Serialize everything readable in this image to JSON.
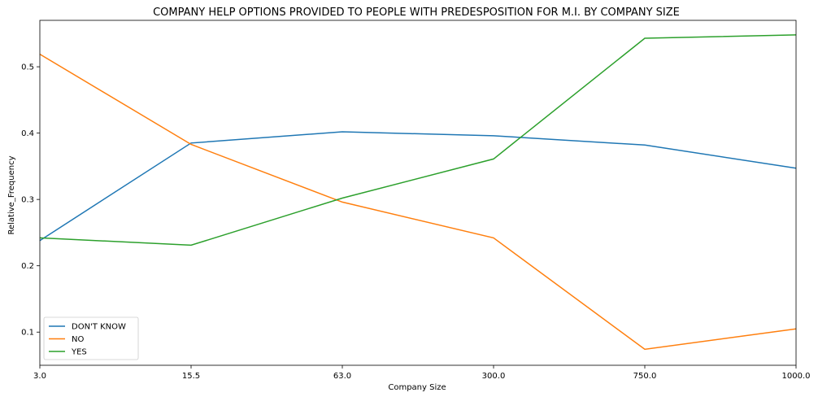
{
  "chart_data": {
    "type": "line",
    "title": "COMPANY HELP OPTIONS PROVIDED TO PEOPLE WITH PREDESPOSITION FOR M.I. BY COMPANY SIZE",
    "xlabel": "Company Size",
    "ylabel": "Relative_Frequency",
    "categories": [
      "3.0",
      "15.5",
      "63.0",
      "300.0",
      "750.0",
      "1000.0"
    ],
    "y_ticks": [
      "0.1",
      "0.2",
      "0.3",
      "0.4",
      "0.5"
    ],
    "ylim": [
      0.05,
      0.57
    ],
    "grid": false,
    "legend_position": "bottom-left",
    "series": [
      {
        "name": "DON'T KNOW",
        "color": "#1f77b4",
        "values": [
          0.238,
          0.385,
          0.402,
          0.396,
          0.382,
          0.347
        ]
      },
      {
        "name": "NO",
        "color": "#ff7f0e",
        "values": [
          0.519,
          0.383,
          0.296,
          0.242,
          0.074,
          0.105
        ]
      },
      {
        "name": "YES",
        "color": "#2ca02c",
        "values": [
          0.242,
          0.231,
          0.302,
          0.361,
          0.543,
          0.548
        ]
      }
    ]
  }
}
